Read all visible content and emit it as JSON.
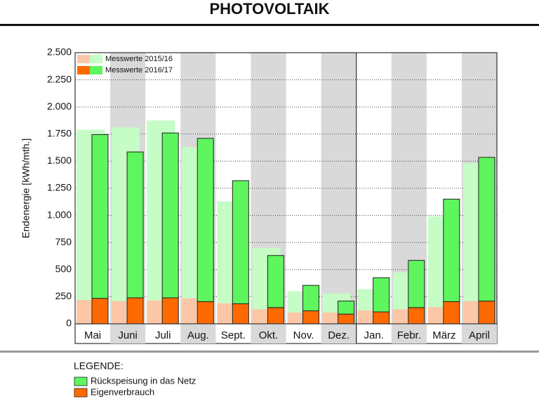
{
  "chart_data": {
    "type": "bar",
    "title": "PHOTOVOLTAIK",
    "y_label": "Endenergie [kWh/mth.]",
    "categories": [
      "Mai",
      "Juni",
      "Juli",
      "Aug.",
      "Sept.",
      "Okt.",
      "Nov.",
      "Dez.",
      "Jan.",
      "Febr.",
      "März",
      "April"
    ],
    "legend_title": "LEGENDE:",
    "stack_names": [
      "Eigenverbrauch",
      "Rückspeisung in das Netz"
    ],
    "stack_colors": [
      "#ff6a00",
      "#5ef55e"
    ],
    "series": [
      {
        "name": "Messwerte 2015/16",
        "colors": [
          "#fcc7a6",
          "#c6fcc6"
        ],
        "stacks": [
          [
            220,
            210,
            215,
            235,
            190,
            135,
            105,
            105,
            125,
            135,
            155,
            210
          ],
          [
            1570,
            1600,
            1660,
            1395,
            940,
            565,
            195,
            175,
            195,
            340,
            835,
            1270
          ]
        ]
      },
      {
        "name": "Messwerte 2016/17",
        "colors": [
          "#ff6a00",
          "#5ef55e"
        ],
        "stacks": [
          [
            235,
            240,
            240,
            205,
            185,
            150,
            120,
            90,
            110,
            150,
            205,
            210
          ],
          [
            1510,
            1345,
            1520,
            1505,
            1135,
            480,
            235,
            120,
            315,
            435,
            945,
            1325
          ]
        ]
      }
    ],
    "ylim": [
      0,
      2500
    ],
    "yticks": [
      0,
      250,
      500,
      750,
      {
        "value": 1000,
        "label": "1.000"
      },
      {
        "value": 1250,
        "label": "1.250"
      },
      {
        "value": 1500,
        "label": "1.500"
      },
      {
        "value": 1750,
        "label": "1.750"
      },
      {
        "value": 2000,
        "label": "2.000"
      },
      {
        "value": 2250,
        "label": "2.250"
      },
      {
        "value": 2500,
        "label": "2.500"
      }
    ],
    "grid": true
  }
}
